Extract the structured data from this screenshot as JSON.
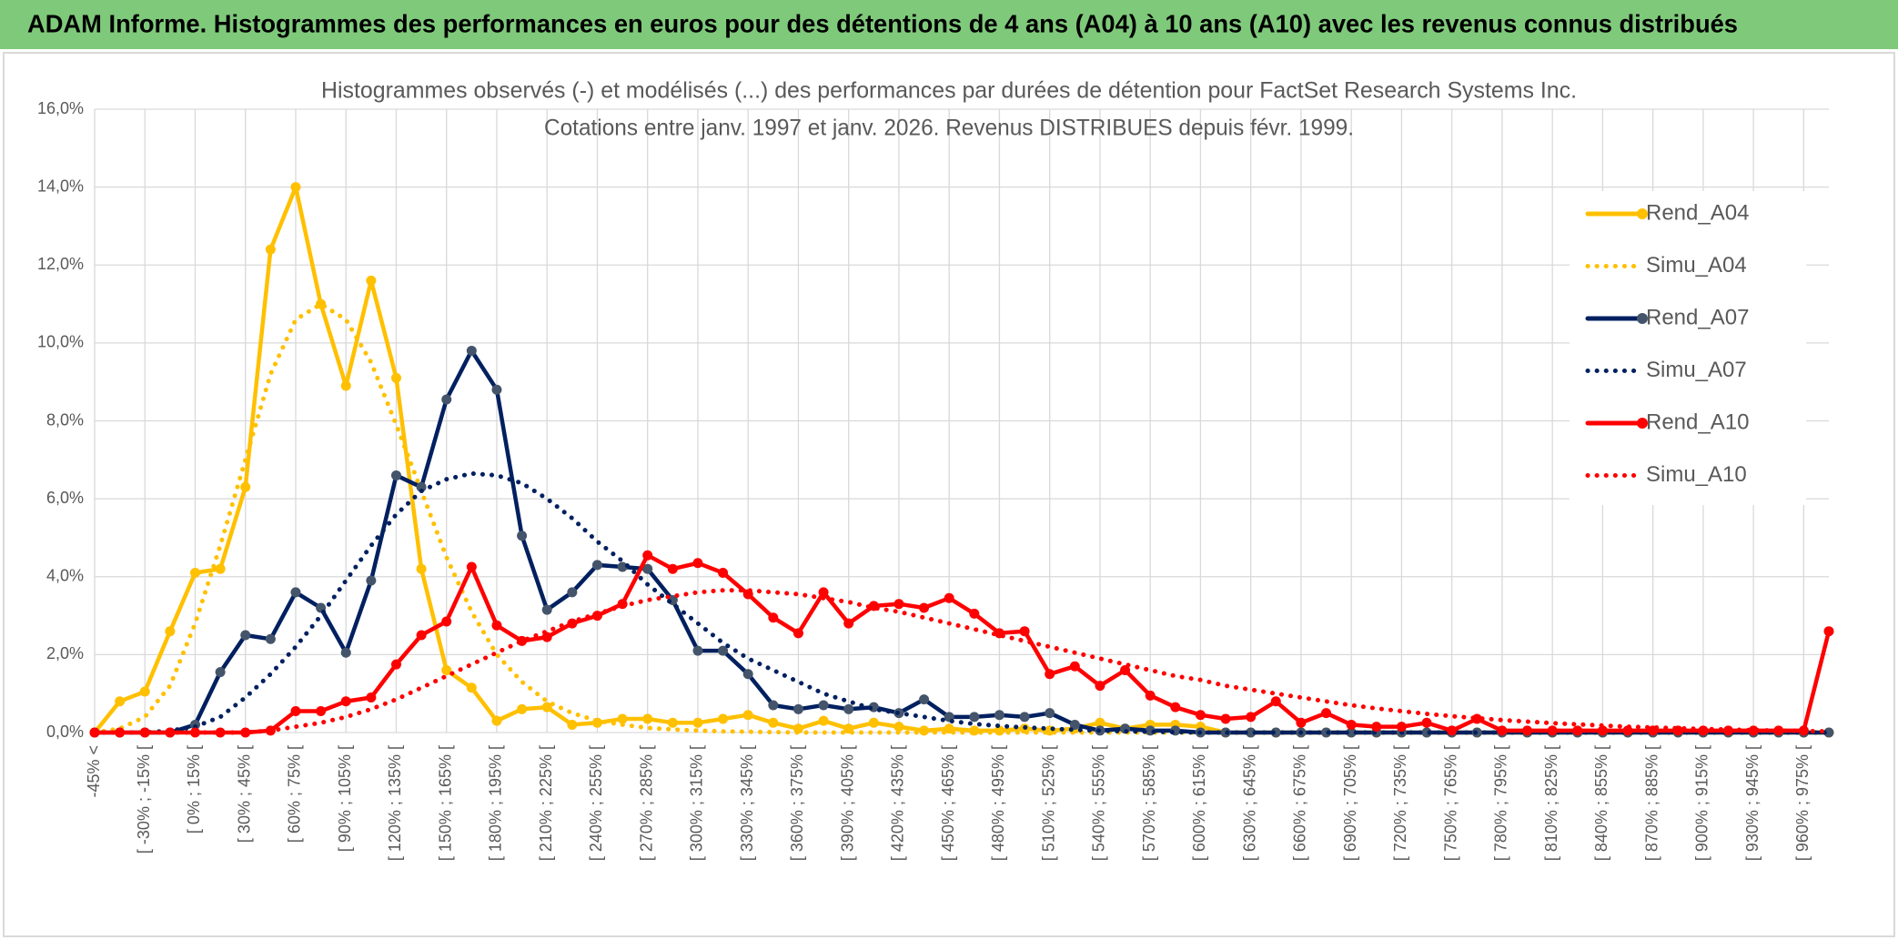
{
  "header": {
    "title": "ADAM Informe. Histogrammes des performances en euros pour des détentions de 4 ans (A04) à 10 ans (A10) avec les revenus connus distribués"
  },
  "chart_data": {
    "type": "line",
    "title": "Histogrammes observés (-) et modélisés (...) des performances par durées de détention pour FactSet Research Systems Inc.",
    "subtitle": "Cotations entre janv. 1997 et janv. 2026. Revenus DISTRIBUES depuis févr. 1999.",
    "categories": [
      "-45% <",
      null,
      "[ -30% ; -15% [",
      null,
      "[ 0% ; 15% [",
      null,
      "[ 30% ; 45% [",
      null,
      "[ 60% ; 75% [",
      null,
      "[ 90% ; 105% [",
      null,
      "[ 120% ; 135% [",
      null,
      "[ 150% ; 165% [",
      null,
      "[ 180% ; 195% [",
      null,
      "[ 210% ; 225% [",
      null,
      "[ 240% ; 255% [",
      null,
      "[ 270% ; 285% [",
      null,
      "[ 300% ; 315% [",
      null,
      "[ 330% ; 345% [",
      null,
      "[ 360% ; 375% [",
      null,
      "[ 390% ; 405% [",
      null,
      "[ 420% ; 435% [",
      null,
      "[ 450% ; 465% [",
      null,
      "[ 480% ; 495% [",
      null,
      "[ 510% ; 525% [",
      null,
      "[ 540% ; 555% [",
      null,
      "[ 570% ; 585% [",
      null,
      "[ 600% ; 615% [",
      null,
      "[ 630% ; 645% [",
      null,
      "[ 660% ; 675% [",
      null,
      "[ 690% ; 705% [",
      null,
      "[ 720% ; 735% [",
      null,
      "[ 750% ; 765% [",
      null,
      "[ 780% ; 795% [",
      null,
      "[ 810% ; 825% [",
      null,
      "[ 840% ; 855% [",
      null,
      "[ 870% ; 885% [",
      null,
      "[ 900% ; 915% [",
      null,
      "[ 930% ; 945% [",
      null,
      "[ 960% ; 975% [",
      null
    ],
    "ylim": [
      0,
      16
    ],
    "yticks": [
      {
        "value": 0,
        "label": "0,0%"
      },
      {
        "value": 2,
        "label": "2,0%"
      },
      {
        "value": 4,
        "label": "4,0%"
      },
      {
        "value": 6,
        "label": "6,0%"
      },
      {
        "value": 8,
        "label": "8,0%"
      },
      {
        "value": 10,
        "label": "10,0%"
      },
      {
        "value": 12,
        "label": "12,0%"
      },
      {
        "value": 14,
        "label": "14,0%"
      },
      {
        "value": 16,
        "label": "16,0%"
      }
    ],
    "grid": true,
    "legend": "right",
    "series": [
      {
        "name": "Rend_A04",
        "color": "#ffc000",
        "marker_color": "#ffc000",
        "style": "solid",
        "values": [
          0,
          0.8,
          1.05,
          2.6,
          4.1,
          4.2,
          6.3,
          12.4,
          14.0,
          11.0,
          8.9,
          11.6,
          9.1,
          4.2,
          1.6,
          1.15,
          0.3,
          0.6,
          0.65,
          0.2,
          0.25,
          0.35,
          0.35,
          0.25,
          0.25,
          0.35,
          0.45,
          0.25,
          0.1,
          0.3,
          0.1,
          0.25,
          0.15,
          0.05,
          0.1,
          0.05,
          0.05,
          0.1,
          0.05,
          0.1,
          0.25,
          0.1,
          0.2,
          0.2,
          0.15,
          0,
          0,
          0,
          0,
          0,
          0,
          0,
          0,
          0,
          0,
          0,
          0,
          0,
          0,
          0,
          0,
          0,
          0,
          0,
          0,
          0,
          0,
          0,
          0,
          0
        ]
      },
      {
        "name": "Simu_A04",
        "color": "#ffc000",
        "style": "dotted",
        "values": [
          0,
          0.1,
          0.4,
          1.2,
          2.8,
          4.8,
          7.0,
          9.2,
          10.6,
          11.0,
          10.6,
          9.5,
          7.9,
          6.2,
          4.5,
          3.1,
          2.0,
          1.3,
          0.8,
          0.5,
          0.3,
          0.2,
          0.12,
          0.08,
          0.05,
          0.03,
          0.02,
          0.01,
          0,
          0,
          0,
          0,
          0,
          0,
          0,
          0,
          0,
          0,
          0,
          0,
          0,
          0,
          0,
          0,
          0,
          0,
          0,
          0,
          0,
          0,
          0,
          0,
          0,
          0,
          0,
          0,
          0,
          0,
          0,
          0,
          0,
          0,
          0,
          0,
          0,
          0,
          0,
          0,
          0,
          0
        ]
      },
      {
        "name": "Rend_A07",
        "color": "#002060",
        "marker_color": "#44546a",
        "style": "solid",
        "values": [
          0,
          0,
          0,
          0,
          0.2,
          1.55,
          2.5,
          2.4,
          3.6,
          3.2,
          2.05,
          3.9,
          6.6,
          6.3,
          8.55,
          9.8,
          8.8,
          5.05,
          3.15,
          3.6,
          4.3,
          4.25,
          4.2,
          3.4,
          2.1,
          2.1,
          1.5,
          0.7,
          0.6,
          0.7,
          0.6,
          0.65,
          0.5,
          0.85,
          0.4,
          0.4,
          0.45,
          0.4,
          0.5,
          0.2,
          0.05,
          0.1,
          0.05,
          0.05,
          0,
          0,
          0,
          0,
          0,
          0,
          0,
          0,
          0,
          0,
          0,
          0,
          0,
          0,
          0,
          0,
          0,
          0,
          0,
          0,
          0,
          0,
          0,
          0,
          0,
          0
        ]
      },
      {
        "name": "Simu_A07",
        "color": "#002060",
        "style": "dotted",
        "values": [
          0,
          0,
          0,
          0.05,
          0.15,
          0.4,
          0.9,
          1.5,
          2.2,
          3.0,
          3.9,
          4.8,
          5.6,
          6.2,
          6.5,
          6.65,
          6.6,
          6.4,
          6.0,
          5.5,
          4.9,
          4.4,
          3.8,
          3.3,
          2.8,
          2.3,
          1.9,
          1.6,
          1.3,
          1.0,
          0.8,
          0.6,
          0.5,
          0.4,
          0.3,
          0.22,
          0.17,
          0.13,
          0.1,
          0.07,
          0.05,
          0.03,
          0.02,
          0.01,
          0,
          0,
          0,
          0,
          0,
          0,
          0,
          0,
          0,
          0,
          0,
          0,
          0,
          0,
          0,
          0,
          0,
          0,
          0,
          0,
          0,
          0,
          0,
          0,
          0,
          0
        ]
      },
      {
        "name": "Rend_A10",
        "color": "#ff0000",
        "marker_color": "#ff0000",
        "style": "solid",
        "values": [
          0,
          0,
          0,
          0,
          0,
          0,
          0,
          0.05,
          0.55,
          0.55,
          0.8,
          0.9,
          1.75,
          2.5,
          2.85,
          4.25,
          2.75,
          2.35,
          2.45,
          2.8,
          3.0,
          3.3,
          4.55,
          4.2,
          4.35,
          4.1,
          3.55,
          2.95,
          2.55,
          3.6,
          2.8,
          3.25,
          3.3,
          3.2,
          3.45,
          3.05,
          2.55,
          2.6,
          1.5,
          1.7,
          1.2,
          1.6,
          0.95,
          0.65,
          0.45,
          0.35,
          0.4,
          0.8,
          0.25,
          0.5,
          0.2,
          0.15,
          0.15,
          0.25,
          0.05,
          0.35,
          0.05,
          0.05,
          0.05,
          0.05,
          0.05,
          0.05,
          0.05,
          0.05,
          0.05,
          0.05,
          0.05,
          0.05,
          0.05,
          2.6
        ]
      },
      {
        "name": "Simu_A10",
        "color": "#ff0000",
        "style": "dotted",
        "values": [
          0,
          0,
          0,
          0,
          0,
          0,
          0,
          0.05,
          0.15,
          0.25,
          0.4,
          0.6,
          0.85,
          1.15,
          1.45,
          1.75,
          2.05,
          2.35,
          2.6,
          2.85,
          3.05,
          3.25,
          3.4,
          3.5,
          3.6,
          3.65,
          3.65,
          3.6,
          3.55,
          3.45,
          3.35,
          3.2,
          3.1,
          2.95,
          2.8,
          2.65,
          2.5,
          2.35,
          2.2,
          2.05,
          1.9,
          1.75,
          1.6,
          1.45,
          1.35,
          1.2,
          1.1,
          1.0,
          0.9,
          0.8,
          0.7,
          0.62,
          0.55,
          0.48,
          0.42,
          0.37,
          0.32,
          0.28,
          0.24,
          0.21,
          0.18,
          0.15,
          0.13,
          0.11,
          0.09,
          0.08,
          0.06,
          0.05,
          0.04,
          0.03
        ]
      }
    ]
  }
}
